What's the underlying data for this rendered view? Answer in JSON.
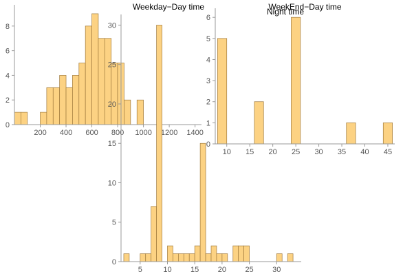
{
  "style": {
    "bar_fill": "#fcd283",
    "bar_stroke": "#a07a3c",
    "axis_color": "#999999",
    "tick_text_color": "#555555"
  },
  "chart_data": [
    {
      "type": "bar",
      "title": "Weekday−Day time",
      "title_position": "top-right",
      "x_ticks": [
        "200",
        "400",
        "600",
        "800",
        "1000",
        "1200",
        "1400"
      ],
      "y_ticks": [
        "0",
        "2",
        "4",
        "6",
        "8"
      ],
      "xlim": [
        0,
        1450
      ],
      "ylim": [
        0,
        9.5
      ],
      "bins": [
        {
          "x0": 0,
          "x1": 50,
          "value": 1
        },
        {
          "x0": 50,
          "x1": 100,
          "value": 1
        },
        {
          "x0": 200,
          "x1": 250,
          "value": 1
        },
        {
          "x0": 250,
          "x1": 300,
          "value": 3
        },
        {
          "x0": 300,
          "x1": 350,
          "value": 3
        },
        {
          "x0": 350,
          "x1": 400,
          "value": 4
        },
        {
          "x0": 400,
          "x1": 450,
          "value": 3
        },
        {
          "x0": 450,
          "x1": 500,
          "value": 4
        },
        {
          "x0": 500,
          "x1": 550,
          "value": 5
        },
        {
          "x0": 550,
          "x1": 600,
          "value": 8
        },
        {
          "x0": 600,
          "x1": 650,
          "value": 9
        },
        {
          "x0": 650,
          "x1": 700,
          "value": 7
        },
        {
          "x0": 700,
          "x1": 750,
          "value": 7
        },
        {
          "x0": 750,
          "x1": 800,
          "value": 5
        },
        {
          "x0": 800,
          "x1": 850,
          "value": 5
        },
        {
          "x0": 850,
          "x1": 900,
          "value": 2
        },
        {
          "x0": 950,
          "x1": 1000,
          "value": 2
        }
      ]
    },
    {
      "type": "bar",
      "title": "WeekEnd−Day time",
      "title_position": "top-center",
      "x_ticks": [
        "10",
        "15",
        "20",
        "25",
        "30",
        "35",
        "40",
        "45"
      ],
      "y_ticks": [
        "0",
        "1",
        "2",
        "3",
        "4",
        "5",
        "6"
      ],
      "xlim": [
        7.5,
        46.5
      ],
      "ylim": [
        0,
        6.3
      ],
      "bins": [
        {
          "x0": 8,
          "x1": 10,
          "value": 5
        },
        {
          "x0": 16,
          "x1": 18,
          "value": 2
        },
        {
          "x0": 24,
          "x1": 26,
          "value": 6
        },
        {
          "x0": 36,
          "x1": 38,
          "value": 1
        },
        {
          "x0": 44,
          "x1": 46,
          "value": 1
        }
      ]
    },
    {
      "type": "bar",
      "title": "Night time",
      "title_position": "top-right",
      "x_ticks": [
        "5",
        "10",
        "15",
        "20",
        "25",
        "30"
      ],
      "y_ticks": [
        "0",
        "5",
        "10",
        "15",
        "20",
        "25",
        "30"
      ],
      "xlim": [
        1.5,
        34.5
      ],
      "ylim": [
        0,
        31
      ],
      "bins": [
        {
          "x0": 2,
          "x1": 3,
          "value": 1
        },
        {
          "x0": 4,
          "x1": 5,
          "value": 0
        },
        {
          "x0": 5,
          "x1": 6,
          "value": 1
        },
        {
          "x0": 6,
          "x1": 7,
          "value": 1
        },
        {
          "x0": 7,
          "x1": 8,
          "value": 7
        },
        {
          "x0": 8,
          "x1": 9,
          "value": 30
        },
        {
          "x0": 10,
          "x1": 11,
          "value": 2
        },
        {
          "x0": 11,
          "x1": 12,
          "value": 1
        },
        {
          "x0": 12,
          "x1": 13,
          "value": 1
        },
        {
          "x0": 13,
          "x1": 14,
          "value": 1
        },
        {
          "x0": 14,
          "x1": 15,
          "value": 1
        },
        {
          "x0": 15,
          "x1": 16,
          "value": 2
        },
        {
          "x0": 16,
          "x1": 17,
          "value": 15
        },
        {
          "x0": 17,
          "x1": 18,
          "value": 1
        },
        {
          "x0": 18,
          "x1": 19,
          "value": 2
        },
        {
          "x0": 19,
          "x1": 20,
          "value": 1
        },
        {
          "x0": 20,
          "x1": 21,
          "value": 1
        },
        {
          "x0": 22,
          "x1": 23,
          "value": 2
        },
        {
          "x0": 23,
          "x1": 24,
          "value": 2
        },
        {
          "x0": 24,
          "x1": 25,
          "value": 2
        },
        {
          "x0": 30,
          "x1": 31,
          "value": 1
        },
        {
          "x0": 32,
          "x1": 33,
          "value": 1
        }
      ]
    }
  ]
}
